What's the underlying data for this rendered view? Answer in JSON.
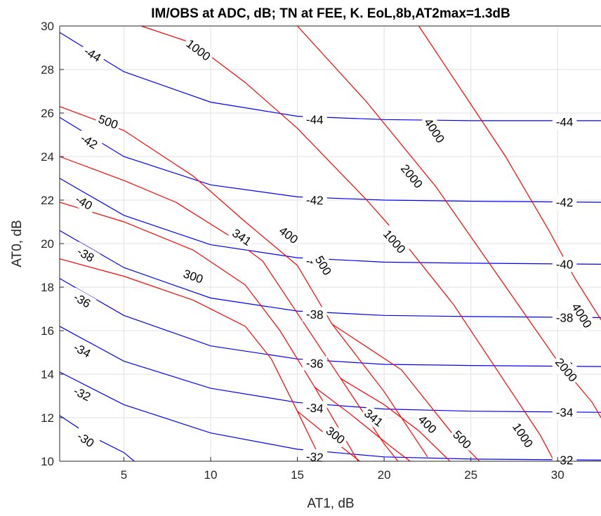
{
  "chart_data": {
    "type": "contour",
    "title": "IM/OBS at ADC, dB; TN at FEE, K. EoL,8b,AT2max=1.3dB",
    "xlabel": "AT1, dB",
    "ylabel": "AT0, dB",
    "xlim": [
      1.3,
      32.5
    ],
    "ylim": [
      10,
      30
    ],
    "xticks": [
      5,
      10,
      15,
      20,
      25,
      30
    ],
    "yticks": [
      10,
      12,
      14,
      16,
      18,
      20,
      22,
      24,
      26,
      28,
      30
    ],
    "grid": true,
    "colors": {
      "im_obs": "#0000ff",
      "tn": "#ff0000",
      "grid": "#e0e0e0",
      "axis": "#262626"
    },
    "series": [
      {
        "name": "IM/OBS",
        "levels": [
          {
            "level": "-44",
            "points": [
              [
                1.3,
                29.7
              ],
              [
                5,
                27.9
              ],
              [
                10,
                26.5
              ],
              [
                15,
                25.85
              ],
              [
                20,
                25.7
              ],
              [
                25,
                25.65
              ],
              [
                32.5,
                25.65
              ]
            ],
            "labels": [
              [
                3.2,
                28.7
              ],
              [
                16,
                25.7
              ],
              [
                30.4,
                25.6
              ]
            ]
          },
          {
            "level": "-42",
            "points": [
              [
                1.3,
                25.8
              ],
              [
                5,
                24.0
              ],
              [
                10,
                22.7
              ],
              [
                15,
                22.15
              ],
              [
                20,
                22.0
              ],
              [
                25,
                21.95
              ],
              [
                32.5,
                21.9
              ]
            ],
            "labels": [
              [
                3.0,
                24.7
              ],
              [
                16,
                22.0
              ],
              [
                30.4,
                21.9
              ]
            ]
          },
          {
            "level": "-40",
            "points": [
              [
                1.3,
                23.0
              ],
              [
                5,
                21.3
              ],
              [
                10,
                19.95
              ],
              [
                15,
                19.35
              ],
              [
                20,
                19.15
              ],
              [
                25,
                19.1
              ],
              [
                32.5,
                19.05
              ]
            ],
            "labels": [
              [
                2.7,
                21.9
              ],
              [
                16,
                19.2
              ],
              [
                30.4,
                19.05
              ]
            ]
          },
          {
            "level": "-38",
            "points": [
              [
                1.3,
                20.6
              ],
              [
                5,
                18.9
              ],
              [
                10,
                17.5
              ],
              [
                15,
                16.9
              ],
              [
                20,
                16.7
              ],
              [
                25,
                16.65
              ],
              [
                32.5,
                16.6
              ]
            ],
            "labels": [
              [
                2.8,
                19.5
              ],
              [
                16,
                16.75
              ],
              [
                30.4,
                16.6
              ]
            ]
          },
          {
            "level": "-36",
            "points": [
              [
                1.3,
                18.4
              ],
              [
                5,
                16.7
              ],
              [
                10,
                15.3
              ],
              [
                15,
                14.7
              ],
              [
                20,
                14.45
              ],
              [
                25,
                14.4
              ],
              [
                32.5,
                14.35
              ]
            ],
            "labels": [
              [
                2.6,
                17.4
              ],
              [
                16,
                14.5
              ],
              [
                30.4,
                14.35
              ]
            ]
          },
          {
            "level": "-34",
            "points": [
              [
                1.3,
                16.2
              ],
              [
                5,
                14.6
              ],
              [
                10,
                13.35
              ],
              [
                15,
                12.7
              ],
              [
                20,
                12.4
              ],
              [
                25,
                12.3
              ],
              [
                32.5,
                12.25
              ]
            ],
            "labels": [
              [
                2.6,
                15.1
              ],
              [
                16,
                12.45
              ],
              [
                30.4,
                12.25
              ]
            ]
          },
          {
            "level": "-32",
            "points": [
              [
                1.3,
                14.1
              ],
              [
                5,
                12.6
              ],
              [
                10,
                11.3
              ],
              [
                15,
                10.55
              ],
              [
                20,
                10.2
              ],
              [
                25,
                10.1
              ],
              [
                32.5,
                10.05
              ]
            ],
            "labels": [
              [
                2.6,
                13.1
              ],
              [
                16,
                10.2
              ],
              [
                30.4,
                10.05
              ]
            ]
          },
          {
            "level": "-30",
            "points": [
              [
                1.3,
                12.1
              ],
              [
                3,
                11.2
              ],
              [
                5,
                10.4
              ],
              [
                5.6,
                10.0
              ]
            ],
            "labels": [
              [
                2.8,
                11.0
              ]
            ]
          }
        ]
      },
      {
        "name": "TN",
        "levels": [
          {
            "level": "1000",
            "points": [
              [
                6,
                30
              ],
              [
                9,
                29.2
              ],
              [
                12,
                27.4
              ],
              [
                15,
                25.3
              ],
              [
                19,
                22.0
              ]
            ],
            "labels": [
              [
                9.3,
                28.9
              ]
            ]
          },
          {
            "level": "500",
            "points": [
              [
                1.3,
                26.3
              ],
              [
                5,
                25.2
              ],
              [
                9,
                23.1
              ],
              [
                12,
                21.0
              ],
              [
                15,
                19.0
              ],
              [
                17,
                16.3
              ],
              [
                20,
                13.2
              ],
              [
                22.5,
                10.2
              ]
            ],
            "labels": [
              [
                4.1,
                25.6
              ],
              [
                16.5,
                19.0
              ]
            ]
          },
          {
            "level": "400",
            "points": [
              [
                1.3,
                24.0
              ],
              [
                5,
                22.9
              ],
              [
                8,
                21.9
              ],
              [
                11,
                20.4
              ],
              [
                13,
                19.2
              ],
              [
                15,
                16.8
              ],
              [
                17.5,
                13.8
              ],
              [
                20,
                10.8
              ],
              [
                20.8,
                10.0
              ]
            ],
            "labels": [
              [
                14.5,
                20.4
              ]
            ]
          },
          {
            "level": "341",
            "points": [
              [
                1.3,
                21.9
              ],
              [
                5,
                21.0
              ],
              [
                9,
                19.7
              ],
              [
                12,
                18.1
              ],
              [
                14,
                16.0
              ],
              [
                16,
                13.4
              ],
              [
                18.5,
                10.0
              ]
            ],
            "labels": [
              [
                11.8,
                20.3
              ]
            ]
          },
          {
            "level": "300",
            "points": [
              [
                1.3,
                19.3
              ],
              [
                5,
                18.5
              ],
              [
                9,
                17.4
              ],
              [
                12,
                16.2
              ],
              [
                13.5,
                14.7
              ],
              [
                15,
                12.3
              ],
              [
                16.4,
                10.0
              ]
            ],
            "labels": [
              [
                9.0,
                18.5
              ]
            ]
          },
          {
            "level": "4000",
            "points": [
              [
                22,
                30
              ],
              [
                24.5,
                27.0
              ],
              [
                27,
                24.0
              ],
              [
                29.5,
                20.6
              ],
              [
                31,
                18.4
              ],
              [
                32.5,
                16.5
              ]
            ],
            "labels": [
              [
                22.9,
                25.2
              ],
              [
                31.4,
                16.7
              ]
            ]
          },
          {
            "level": "2000",
            "points": [
              [
                15,
                30
              ],
              [
                19,
                26.5
              ],
              [
                23,
                22.6
              ],
              [
                26.5,
                18.6
              ],
              [
                30,
                14.6
              ],
              [
                32,
                12.7
              ],
              [
                32.5,
                12.0
              ]
            ],
            "labels": [
              [
                21.6,
                23.1
              ],
              [
                30.5,
                14.2
              ]
            ]
          },
          {
            "level": "1000 ",
            "points": [
              [
                19,
                22.0
              ],
              [
                21,
                20.2
              ],
              [
                24,
                17.2
              ],
              [
                27,
                13.6
              ],
              [
                29,
                11.2
              ],
              [
                29.8,
                10.0
              ]
            ],
            "labels": [
              [
                20.6,
                20.1
              ],
              [
                28.0,
                11.2
              ]
            ]
          },
          {
            "level": "500 ",
            "points": [
              [
                17,
                16.3
              ],
              [
                21,
                14.2
              ],
              [
                24,
                11.2
              ],
              [
                25.5,
                10.0
              ]
            ],
            "labels": [
              [
                24.5,
                11.0
              ]
            ]
          },
          {
            "level": "400 ",
            "points": [
              [
                17.5,
                13.8
              ],
              [
                20,
                12.6
              ],
              [
                22,
                11.4
              ],
              [
                23.8,
                10.0
              ]
            ],
            "labels": [
              [
                22.5,
                11.7
              ]
            ]
          },
          {
            "level": "341 ",
            "points": [
              [
                16,
                13.4
              ],
              [
                18,
                12.2
              ],
              [
                20.5,
                10.6
              ],
              [
                21.5,
                10.0
              ]
            ],
            "labels": [
              [
                19.4,
                12.0
              ]
            ]
          },
          {
            "level": "300 ",
            "points": [
              [
                15,
                12.3
              ],
              [
                17,
                11.0
              ],
              [
                18.6,
                10.0
              ]
            ],
            "labels": [
              [
                17.2,
                11.2
              ]
            ]
          }
        ]
      }
    ]
  }
}
